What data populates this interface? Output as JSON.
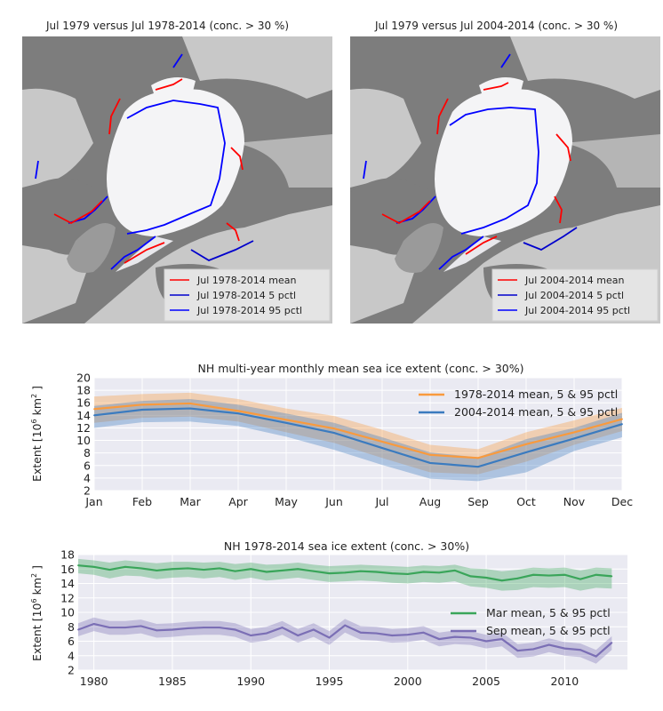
{
  "maps": [
    {
      "title": "Jul 1979 versus Jul 1978-2014 (conc. > 30 %)",
      "legend": [
        "Jul 1978-2014 mean",
        "Jul 1978-2014 5 pctl",
        "Jul 1978-2014 95 pctl"
      ],
      "colors": {
        "mean": "#ff0000",
        "p5": "#0000cc",
        "p95": "#0000ff"
      }
    },
    {
      "title": "Jul 1979 versus Jul 2004-2014 (conc. > 30 %)",
      "legend": [
        "Jul 2004-2014 mean",
        "Jul 2004-2014 5 pctl",
        "Jul 2004-2014 95 pctl"
      ],
      "colors": {
        "mean": "#ff0000",
        "p5": "#0000cc",
        "p95": "#0000ff"
      }
    }
  ],
  "chart_data": [
    {
      "type": "line",
      "title": "NH multi-year monthly mean sea ice extent (conc. > 30%)",
      "ylabel": "Extent [10^6 km^2]",
      "ylabel_parts": {
        "main": "Extent [10",
        "exp1": "6",
        "mid": "  km",
        "exp2": "2",
        "end": " ]"
      },
      "categories": [
        "Jan",
        "Feb",
        "Mar",
        "Apr",
        "May",
        "Jun",
        "Jul",
        "Aug",
        "Sep",
        "Oct",
        "Nov",
        "Dec"
      ],
      "ylim": [
        2,
        20
      ],
      "yticks": [
        2,
        4,
        6,
        8,
        10,
        12,
        14,
        16,
        18,
        20
      ],
      "grid": true,
      "legend_position": "top-right",
      "series": [
        {
          "name": "1978-2014 mean, 5 & 95 pctl",
          "color": "#f99a3d",
          "values": [
            15.0,
            15.7,
            15.9,
            14.7,
            13.3,
            11.9,
            9.8,
            7.7,
            7.2,
            9.4,
            11.3,
            13.4
          ],
          "p5": [
            12.8,
            13.6,
            13.8,
            13.0,
            11.3,
            9.6,
            7.2,
            4.9,
            4.6,
            6.6,
            9.3,
            11.5
          ],
          "p95": [
            17.0,
            17.4,
            17.6,
            16.6,
            15.1,
            13.9,
            11.7,
            9.3,
            8.6,
            11.3,
            13.2,
            15.2
          ]
        },
        {
          "name": "2004-2014 mean, 5 & 95 pctl",
          "color": "#3b7bbf",
          "values": [
            14.0,
            14.9,
            15.1,
            14.3,
            12.8,
            11.2,
            8.8,
            6.4,
            5.8,
            8.1,
            10.3,
            12.6
          ],
          "p5": [
            12.0,
            12.9,
            13.0,
            12.3,
            10.6,
            8.5,
            6.1,
            3.9,
            3.5,
            4.9,
            8.3,
            10.5
          ],
          "p95": [
            15.5,
            16.3,
            16.6,
            15.7,
            14.3,
            12.8,
            10.5,
            8.1,
            7.3,
            10.2,
            12.0,
            14.4
          ]
        }
      ]
    },
    {
      "type": "line",
      "title": "NH 1978-2014 sea ice extent (conc. > 30%)",
      "ylabel": "Extent [10^6 km^2]",
      "ylabel_parts": {
        "main": "Extent [10",
        "exp1": "6",
        "mid": "  km",
        "exp2": "2",
        "end": " ]"
      },
      "xlim": [
        1979,
        2014
      ],
      "ylim": [
        2,
        18
      ],
      "xticks": [
        1980,
        1985,
        1990,
        1995,
        2000,
        2005,
        2010
      ],
      "yticks": [
        2,
        4,
        6,
        8,
        10,
        12,
        14,
        16,
        18
      ],
      "grid": true,
      "legend_position": "center-right",
      "x": [
        1979,
        1980,
        1981,
        1982,
        1983,
        1984,
        1985,
        1986,
        1987,
        1988,
        1989,
        1990,
        1991,
        1992,
        1993,
        1994,
        1995,
        1996,
        1997,
        1998,
        1999,
        2000,
        2001,
        2002,
        2003,
        2004,
        2005,
        2006,
        2007,
        2008,
        2009,
        2010,
        2011,
        2012,
        2013
      ],
      "series": [
        {
          "name": "Mar mean, 5 & 95 pctl",
          "color": "#3aa55a",
          "values": [
            16.5,
            16.3,
            15.9,
            16.3,
            16.1,
            15.8,
            16.0,
            16.1,
            15.9,
            16.1,
            15.7,
            16.0,
            15.6,
            15.8,
            16.0,
            15.7,
            15.4,
            15.5,
            15.7,
            15.6,
            15.4,
            15.3,
            15.6,
            15.5,
            15.8,
            15.0,
            14.8,
            14.4,
            14.7,
            15.2,
            15.1,
            15.2,
            14.6,
            15.2,
            15.0
          ],
          "p5": [
            15.4,
            15.2,
            14.7,
            15.1,
            15.0,
            14.6,
            14.8,
            14.9,
            14.7,
            14.9,
            14.5,
            14.8,
            14.4,
            14.6,
            14.8,
            14.5,
            14.2,
            14.3,
            14.4,
            14.3,
            14.1,
            14.0,
            14.2,
            14.1,
            14.3,
            13.6,
            13.4,
            13.0,
            13.1,
            13.5,
            13.4,
            13.5,
            13.0,
            13.4,
            13.3
          ],
          "p95": [
            17.4,
            17.2,
            16.9,
            17.2,
            17.0,
            16.8,
            17.0,
            17.0,
            16.9,
            17.0,
            16.7,
            16.9,
            16.6,
            16.7,
            16.9,
            16.6,
            16.4,
            16.5,
            16.6,
            16.5,
            16.4,
            16.3,
            16.5,
            16.4,
            16.6,
            16.1,
            16.0,
            15.7,
            15.9,
            16.2,
            16.1,
            16.2,
            15.8,
            16.2,
            16.1
          ]
        },
        {
          "name": "Sep mean, 5 & 95 pctl",
          "color": "#7b6fb5",
          "values": [
            7.6,
            8.4,
            7.9,
            7.9,
            8.1,
            7.5,
            7.6,
            7.8,
            7.9,
            7.9,
            7.6,
            6.8,
            7.1,
            7.9,
            6.8,
            7.6,
            6.5,
            8.2,
            7.2,
            7.1,
            6.8,
            6.9,
            7.2,
            6.3,
            6.6,
            6.5,
            6.0,
            6.3,
            4.7,
            4.9,
            5.5,
            5.0,
            4.8,
            3.9,
            5.8
          ],
          "p5": [
            6.7,
            7.4,
            6.9,
            6.9,
            7.1,
            6.5,
            6.6,
            6.8,
            6.9,
            6.9,
            6.6,
            5.8,
            6.1,
            6.9,
            5.8,
            6.6,
            5.5,
            7.2,
            6.2,
            6.1,
            5.8,
            5.9,
            6.2,
            5.3,
            5.6,
            5.5,
            5.0,
            5.3,
            3.7,
            3.9,
            4.5,
            4.0,
            3.8,
            2.9,
            4.8
          ],
          "p95": [
            8.5,
            9.3,
            8.8,
            8.8,
            9.0,
            8.4,
            8.5,
            8.7,
            8.8,
            8.8,
            8.5,
            7.7,
            8.0,
            8.8,
            7.7,
            8.5,
            7.4,
            9.1,
            8.1,
            8.0,
            7.7,
            7.8,
            8.1,
            7.2,
            7.5,
            7.4,
            6.9,
            7.2,
            5.6,
            5.8,
            6.4,
            5.9,
            5.7,
            4.8,
            6.7
          ]
        }
      ]
    }
  ]
}
